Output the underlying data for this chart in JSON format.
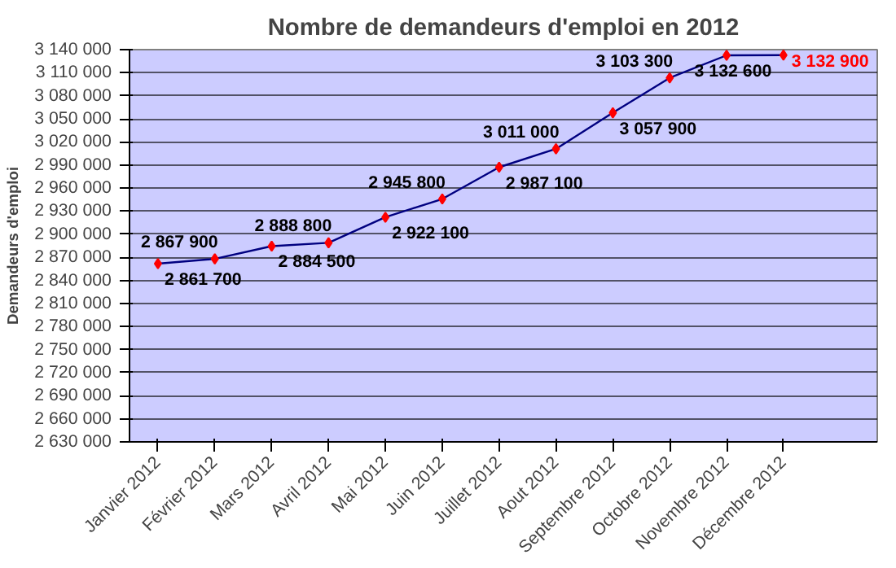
{
  "chart_data": {
    "type": "line",
    "title": "Nombre de demandeurs d'emploi en 2012",
    "ylabel": "Demandeurs d'emploi",
    "categories": [
      "Janvier 2012",
      "Février 2012",
      "Mars 2012",
      "Avril 2012",
      "Mai 2012",
      "Juin 2012",
      "Juillet 2012",
      "Aout 2012",
      "Septembre 2012",
      "Octobre 2012",
      "Novembre 2012",
      "Décembre 2012"
    ],
    "series": [
      {
        "color": "#000080",
        "values": [
          2861700,
          2867900,
          2884500,
          2888800,
          2922100,
          2945800,
          2987100,
          3011000,
          3057900,
          3103300,
          3132600,
          3132900
        ],
        "value_labels": [
          "2 861 700",
          "2 867 900",
          "2 884 500",
          "2 888 800",
          "2 922 100",
          "2 945 800",
          "2 987 100",
          "3 011 000",
          "3 057 900",
          "3 103 300",
          "3 132 600",
          null
        ]
      }
    ],
    "annotations": [
      {
        "text": "3 132 900",
        "x": "Décembre 2012",
        "y": 3132900
      }
    ],
    "marker": "diamond",
    "grid": "y",
    "ylim": [
      2630000,
      3140000
    ],
    "yticks": [
      {
        "value": 2630000,
        "label": "2 630 000"
      },
      {
        "value": 2660000,
        "label": "2 660 000"
      },
      {
        "value": 2690000,
        "label": "2 690 000"
      },
      {
        "value": 2720000,
        "label": "2 720 000"
      },
      {
        "value": 2750000,
        "label": "2 750 000"
      },
      {
        "value": 2780000,
        "label": "2 780 000"
      },
      {
        "value": 2810000,
        "label": "2 810 000"
      },
      {
        "value": 2840000,
        "label": "2 840 000"
      },
      {
        "value": 2870000,
        "label": "2 870 000"
      },
      {
        "value": 2900000,
        "label": "2 900 000"
      },
      {
        "value": 2930000,
        "label": "2 930 000"
      },
      {
        "value": 2960000,
        "label": "2 960 000"
      },
      {
        "value": 2990000,
        "label": "2 990 000"
      },
      {
        "value": 3020000,
        "label": "3 020 000"
      },
      {
        "value": 3050000,
        "label": "3 050 000"
      },
      {
        "value": 3080000,
        "label": "3 080 000"
      },
      {
        "value": 3110000,
        "label": "3 110 000"
      },
      {
        "value": 3140000,
        "label": "3 140 000"
      }
    ]
  }
}
